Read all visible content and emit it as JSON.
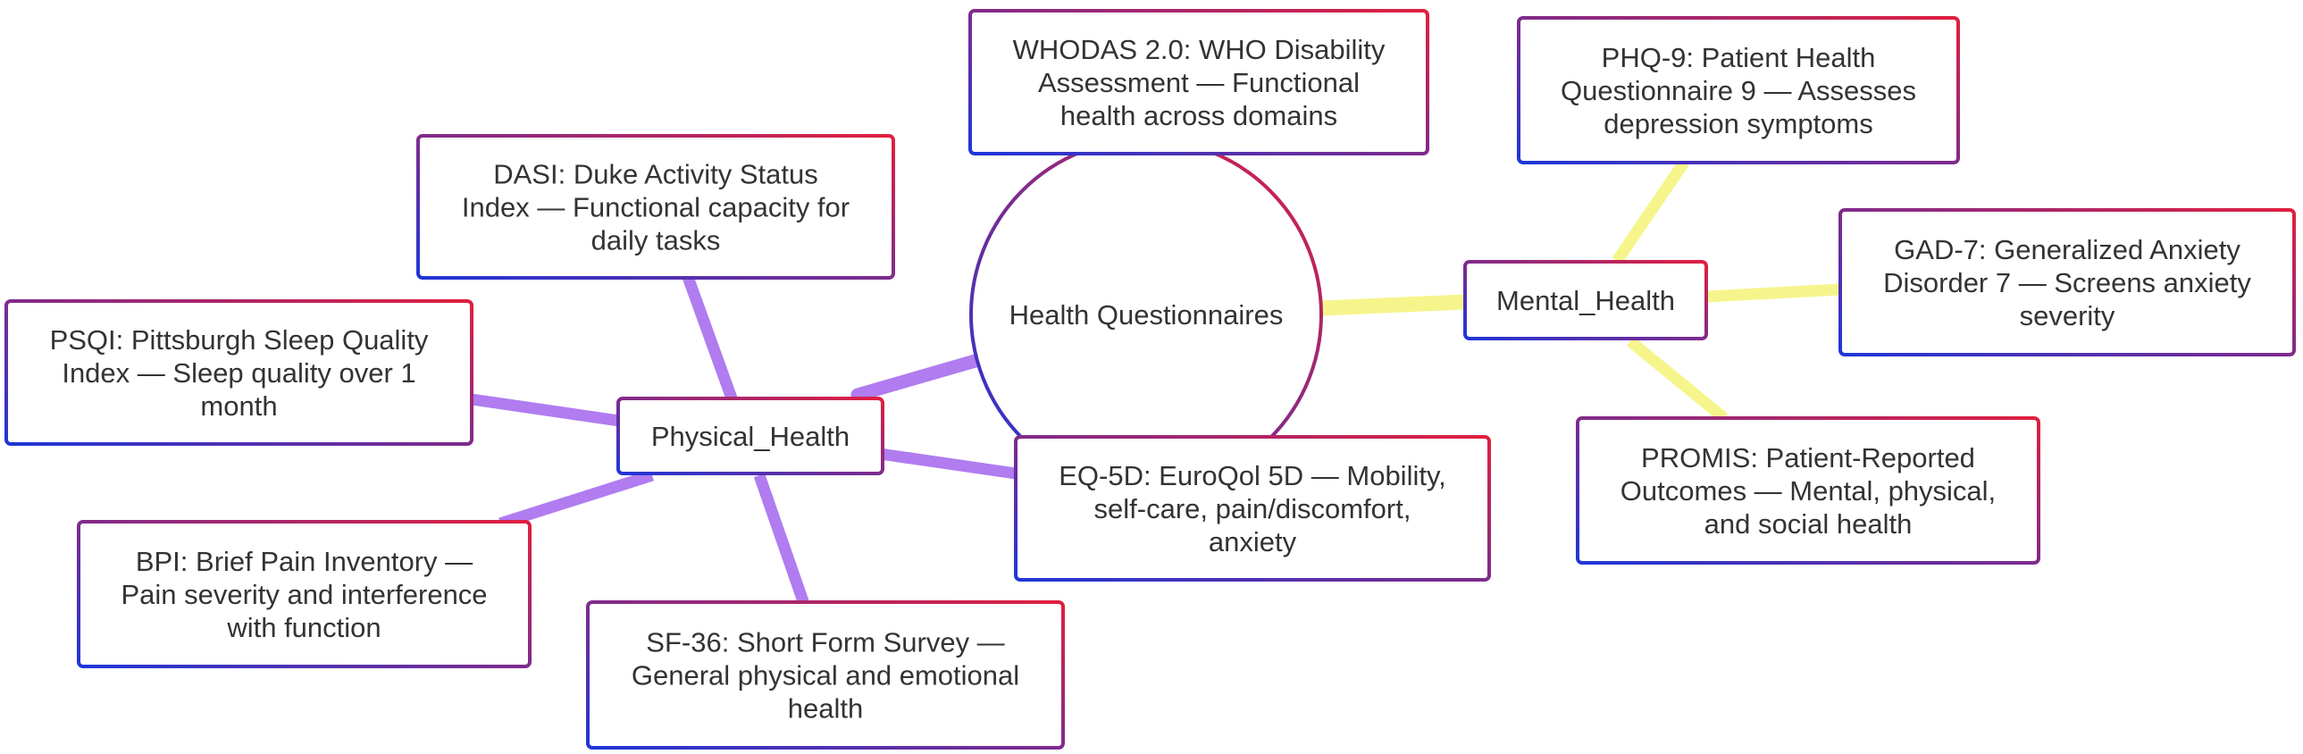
{
  "colors": {
    "physical_edge": "#b07cf0",
    "mental_edge": "#f6f58c",
    "border_start": "#1f36d8",
    "border_end": "#e0203f",
    "text": "#333333",
    "node_fill": "#ffffff"
  },
  "root": {
    "label": "Health Questionnaires"
  },
  "branches": {
    "physical": {
      "label": "Physical_Health",
      "leaves": [
        {
          "lines": [
            "DASI: Duke Activity Status",
            "Index — Functional capacity for",
            "daily tasks"
          ]
        },
        {
          "lines": [
            "PSQI: Pittsburgh Sleep Quality",
            "Index — Sleep quality over 1",
            "month"
          ]
        },
        {
          "lines": [
            "BPI: Brief Pain Inventory —",
            "Pain severity and interference",
            "with function"
          ]
        },
        {
          "lines": [
            "SF-36: Short Form Survey —",
            "General physical and emotional",
            "health"
          ]
        },
        {
          "lines": [
            "EQ-5D: EuroQol 5D — Mobility,",
            "self-care, pain/discomfort,",
            "anxiety"
          ]
        },
        {
          "lines": [
            "WHODAS 2.0: WHO Disability",
            "Assessment — Functional",
            "health across domains"
          ]
        }
      ]
    },
    "mental": {
      "label": "Mental_Health",
      "leaves": [
        {
          "lines": [
            "PHQ-9: Patient Health",
            "Questionnaire 9 — Assesses",
            "depression symptoms"
          ]
        },
        {
          "lines": [
            "GAD-7: Generalized Anxiety",
            "Disorder 7 — Screens anxiety",
            "severity"
          ]
        },
        {
          "lines": [
            "PROMIS: Patient-Reported",
            "Outcomes — Mental, physical,",
            "and social health"
          ]
        }
      ]
    }
  }
}
